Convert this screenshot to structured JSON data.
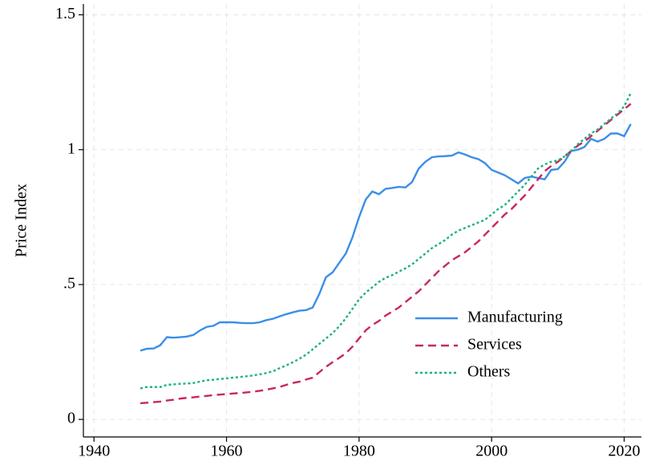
{
  "chart_data": {
    "type": "line",
    "ylabel": "Price Index",
    "x": [
      1947,
      1948,
      1949,
      1950,
      1951,
      1952,
      1953,
      1954,
      1955,
      1956,
      1957,
      1958,
      1959,
      1960,
      1961,
      1962,
      1963,
      1964,
      1965,
      1966,
      1967,
      1968,
      1969,
      1970,
      1971,
      1972,
      1973,
      1974,
      1975,
      1976,
      1977,
      1978,
      1979,
      1980,
      1981,
      1982,
      1983,
      1984,
      1985,
      1986,
      1987,
      1988,
      1989,
      1990,
      1991,
      1992,
      1993,
      1994,
      1995,
      1996,
      1997,
      1998,
      1999,
      2000,
      2001,
      2002,
      2003,
      2004,
      2005,
      2006,
      2007,
      2008,
      2009,
      2010,
      2011,
      2012,
      2013,
      2014,
      2015,
      2016,
      2017,
      2018,
      2019,
      2020,
      2021
    ],
    "series": [
      {
        "name": "Manufacturing",
        "color": "#3b8ee8",
        "dash": "solid",
        "values": [
          0.255,
          0.262,
          0.263,
          0.275,
          0.305,
          0.303,
          0.305,
          0.307,
          0.313,
          0.33,
          0.343,
          0.347,
          0.36,
          0.36,
          0.36,
          0.358,
          0.357,
          0.357,
          0.36,
          0.368,
          0.373,
          0.382,
          0.39,
          0.397,
          0.403,
          0.405,
          0.415,
          0.465,
          0.527,
          0.545,
          0.58,
          0.615,
          0.675,
          0.75,
          0.815,
          0.845,
          0.835,
          0.855,
          0.858,
          0.862,
          0.86,
          0.88,
          0.93,
          0.955,
          0.972,
          0.975,
          0.976,
          0.978,
          0.99,
          0.982,
          0.972,
          0.965,
          0.95,
          0.925,
          0.915,
          0.905,
          0.89,
          0.875,
          0.895,
          0.9,
          0.895,
          0.89,
          0.925,
          0.928,
          0.955,
          0.995,
          1.0,
          1.01,
          1.04,
          1.03,
          1.04,
          1.06,
          1.06,
          1.05,
          1.095
        ]
      },
      {
        "name": "Services",
        "color": "#c8285a",
        "dash": "dashed",
        "values": [
          0.06,
          0.062,
          0.064,
          0.066,
          0.07,
          0.073,
          0.077,
          0.08,
          0.082,
          0.085,
          0.087,
          0.09,
          0.092,
          0.094,
          0.096,
          0.098,
          0.1,
          0.103,
          0.106,
          0.11,
          0.115,
          0.12,
          0.128,
          0.135,
          0.14,
          0.148,
          0.155,
          0.175,
          0.195,
          0.212,
          0.228,
          0.245,
          0.27,
          0.3,
          0.33,
          0.35,
          0.365,
          0.385,
          0.4,
          0.415,
          0.435,
          0.455,
          0.475,
          0.5,
          0.525,
          0.55,
          0.57,
          0.59,
          0.605,
          0.62,
          0.64,
          0.66,
          0.685,
          0.71,
          0.735,
          0.76,
          0.78,
          0.805,
          0.83,
          0.86,
          0.89,
          0.92,
          0.94,
          0.955,
          0.975,
          0.995,
          1.015,
          1.03,
          1.05,
          1.07,
          1.09,
          1.11,
          1.13,
          1.15,
          1.17
        ]
      },
      {
        "name": "Others",
        "color": "#1db37a",
        "dash": "dotted",
        "values": [
          0.115,
          0.12,
          0.12,
          0.12,
          0.128,
          0.13,
          0.132,
          0.133,
          0.135,
          0.14,
          0.145,
          0.147,
          0.15,
          0.152,
          0.155,
          0.157,
          0.16,
          0.163,
          0.167,
          0.172,
          0.178,
          0.19,
          0.2,
          0.212,
          0.225,
          0.24,
          0.26,
          0.28,
          0.3,
          0.32,
          0.345,
          0.375,
          0.41,
          0.445,
          0.47,
          0.49,
          0.51,
          0.525,
          0.535,
          0.548,
          0.56,
          0.575,
          0.595,
          0.615,
          0.635,
          0.65,
          0.665,
          0.685,
          0.7,
          0.71,
          0.72,
          0.73,
          0.74,
          0.76,
          0.78,
          0.795,
          0.82,
          0.845,
          0.87,
          0.9,
          0.93,
          0.945,
          0.955,
          0.96,
          0.975,
          0.995,
          1.02,
          1.04,
          1.06,
          1.075,
          1.095,
          1.115,
          1.135,
          1.16,
          1.21
        ]
      }
    ],
    "xlim": [
      1938.4,
      2022.6
    ],
    "xticks": [
      1940,
      1960,
      1980,
      2000,
      2020
    ],
    "ylim": [
      -0.065,
      1.54
    ],
    "yticks": [
      0,
      {
        "value": 0.5,
        "label": ".5"
      },
      1,
      1.5
    ],
    "grid": true,
    "legend": "lower right"
  }
}
